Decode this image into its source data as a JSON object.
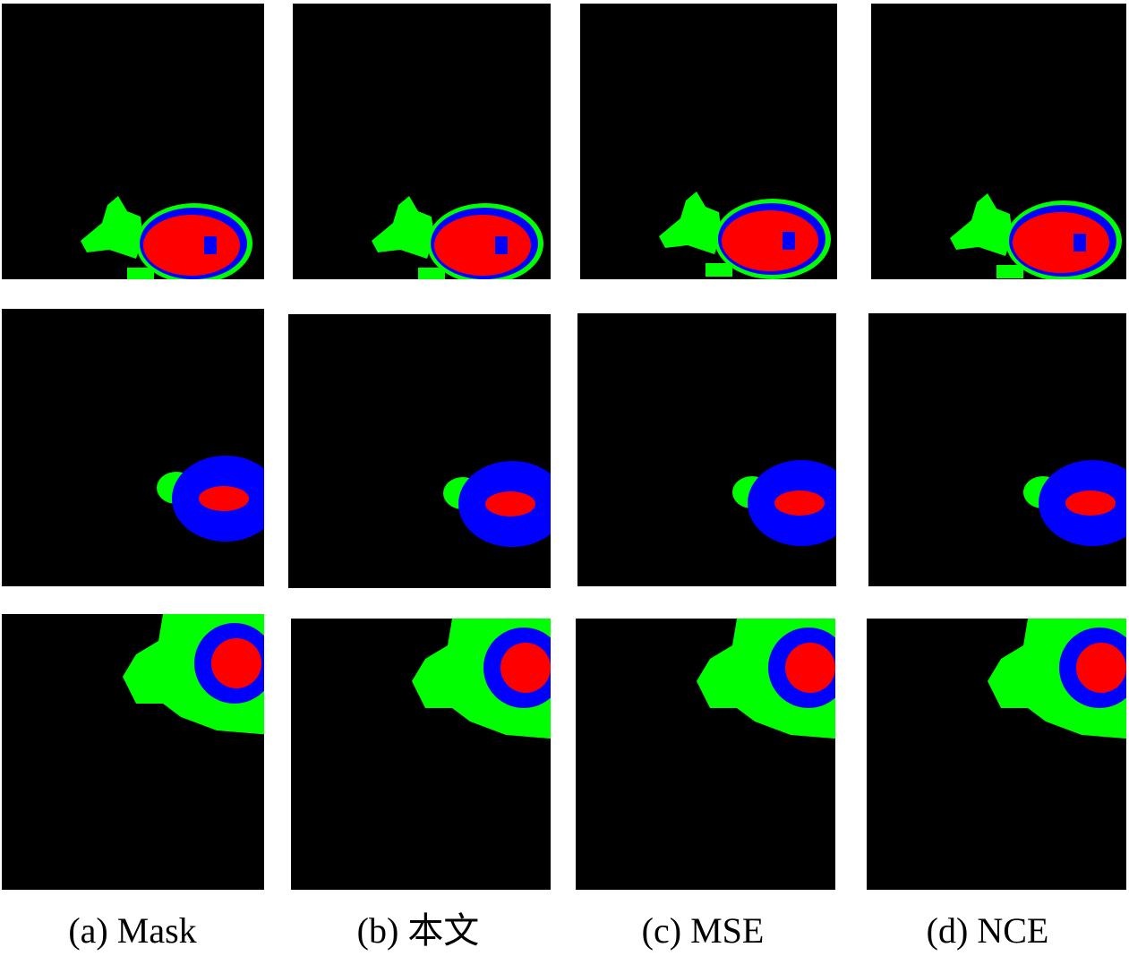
{
  "captions": [
    "(a) Mask",
    "(b) 本文",
    "(c) MSE",
    "(d) NCE"
  ]
}
